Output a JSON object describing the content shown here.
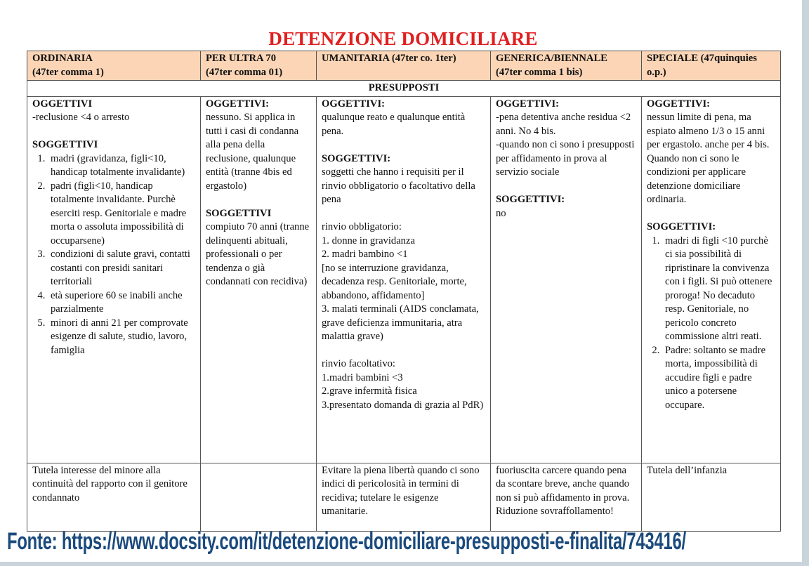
{
  "title": "DETENZIONE DOMICILIARE",
  "colors": {
    "title": "#e01f1f",
    "header_fill": "#fbd5b5",
    "footer": "#1b4a7d"
  },
  "columns": [
    {
      "line1": "ORDINARIA",
      "line2": "(47ter comma 1)"
    },
    {
      "line1": "PER ULTRA 70",
      "line2": "(47ter comma 01)"
    },
    {
      "line1": "UMANITARIA  (47ter co. 1ter)",
      "line2": ""
    },
    {
      "line1": "GENERICA/BIENNALE",
      "line2": "(47ter comma 1 bis)"
    },
    {
      "line1": "SPECIALE (47quinquies",
      "line2": "o.p.)"
    }
  ],
  "section_label": "PRESUPPOSTI",
  "presupposti": [
    [
      {
        "type": "heading",
        "text": "OGGETTIVI"
      },
      {
        "type": "text",
        "text": "-reclusione <4 o arresto"
      },
      {
        "type": "blank"
      },
      {
        "type": "heading",
        "text": "SOGGETTIVI"
      },
      {
        "type": "list",
        "items": [
          "madri (gravidanza, figli<10, handicap totalmente invalidante)",
          "padri (figli<10, handicap totalmente invalidante. Purchè eserciti resp. Genitoriale e madre morta o assoluta impossibilità di occuparsene)",
          "condizioni di salute gravi, contatti costanti con presidi sanitari territoriali",
          "età superiore 60 se inabili anche parzialmente",
          "minori di anni 21 per comprovate esigenze di salute, studio, lavoro, famiglia"
        ]
      }
    ],
    [
      {
        "type": "heading",
        "text": "OGGETTIVI:"
      },
      {
        "type": "text",
        "text": "nessuno. Si applica in tutti i casi di condanna alla pena della reclusione, qualunque entità (tranne 4bis ed ergastolo)"
      },
      {
        "type": "blank"
      },
      {
        "type": "heading",
        "text": "SOGGETTIVI"
      },
      {
        "type": "text",
        "text": "compiuto 70 anni (tranne delinquenti abituali, professionali o per tendenza o già condannati con recidiva)"
      }
    ],
    [
      {
        "type": "heading",
        "text": "OGGETTIVI:"
      },
      {
        "type": "text",
        "text": "qualunque reato e qualunque entità pena."
      },
      {
        "type": "blank"
      },
      {
        "type": "heading",
        "text": "SOGGETTIVI:"
      },
      {
        "type": "text",
        "text": "soggetti che hanno i requisiti per il rinvio obbligatorio o facoltativo della pena"
      },
      {
        "type": "blank"
      },
      {
        "type": "text",
        "text": "rinvio obbligatorio:"
      },
      {
        "type": "text",
        "text": "1. donne in gravidanza"
      },
      {
        "type": "text",
        "text": "2. madri bambino <1"
      },
      {
        "type": "text",
        "text": "[no se interruzione gravidanza, decadenza resp. Genitoriale, morte, abbandono, affidamento]"
      },
      {
        "type": "text",
        "text": "3. malati terminali (AIDS conclamata, grave deficienza immunitaria, atra malattia grave)"
      },
      {
        "type": "blank"
      },
      {
        "type": "text",
        "text": "rinvio facoltativo:"
      },
      {
        "type": "text",
        "text": "1.madri bambini <3"
      },
      {
        "type": "text",
        "text": "2.grave infermità fisica"
      },
      {
        "type": "text",
        "text": "3.presentato domanda di grazia al PdR)"
      }
    ],
    [
      {
        "type": "heading",
        "text": "OGGETTIVI:"
      },
      {
        "type": "text",
        "text": "-pena detentiva anche residua <2 anni. No 4 bis."
      },
      {
        "type": "text",
        "text": "-quando non ci sono i presupposti per affidamento in prova al servizio sociale"
      },
      {
        "type": "blank"
      },
      {
        "type": "heading",
        "text": "SOGGETTIVI:"
      },
      {
        "type": "text",
        "text": "no"
      }
    ],
    [
      {
        "type": "heading",
        "text": "OGGETTIVI:"
      },
      {
        "type": "text",
        "text": "nessun limite di pena, ma espiato almeno 1/3 o 15 anni per ergastolo. anche per 4 bis. Quando non ci sono le condizioni per applicare detenzione domiciliare ordinaria."
      },
      {
        "type": "blank"
      },
      {
        "type": "heading",
        "text": "SOGGETTIVI:"
      },
      {
        "type": "list",
        "items": [
          "madri di figli <10 purchè ci sia possibilità di ripristinare la convivenza con i figli. Si può ottenere proroga! No decaduto resp. Genitoriale, no pericolo concreto commissione altri reati.",
          "Padre: soltanto se madre morta, impossibilità di accudire figli e padre unico a potersene occupare."
        ]
      }
    ]
  ],
  "finalita": [
    "Tutela interesse del minore alla continuità del rapporto con il genitore condannato",
    "",
    "Evitare la piena libertà quando ci sono indici di pericolosità in termini di recidiva; tutelare le esigenze umanitarie.",
    "fuoriuscita carcere quando pena da scontare breve, anche quando non si può affidamento in prova. Riduzione sovraffollamento!",
    "Tutela dell’infanzia"
  ],
  "footer": "Fonte: https://www.docsity.com/it/detenzione-domiciliare-presupposti-e-finalita/743416/"
}
